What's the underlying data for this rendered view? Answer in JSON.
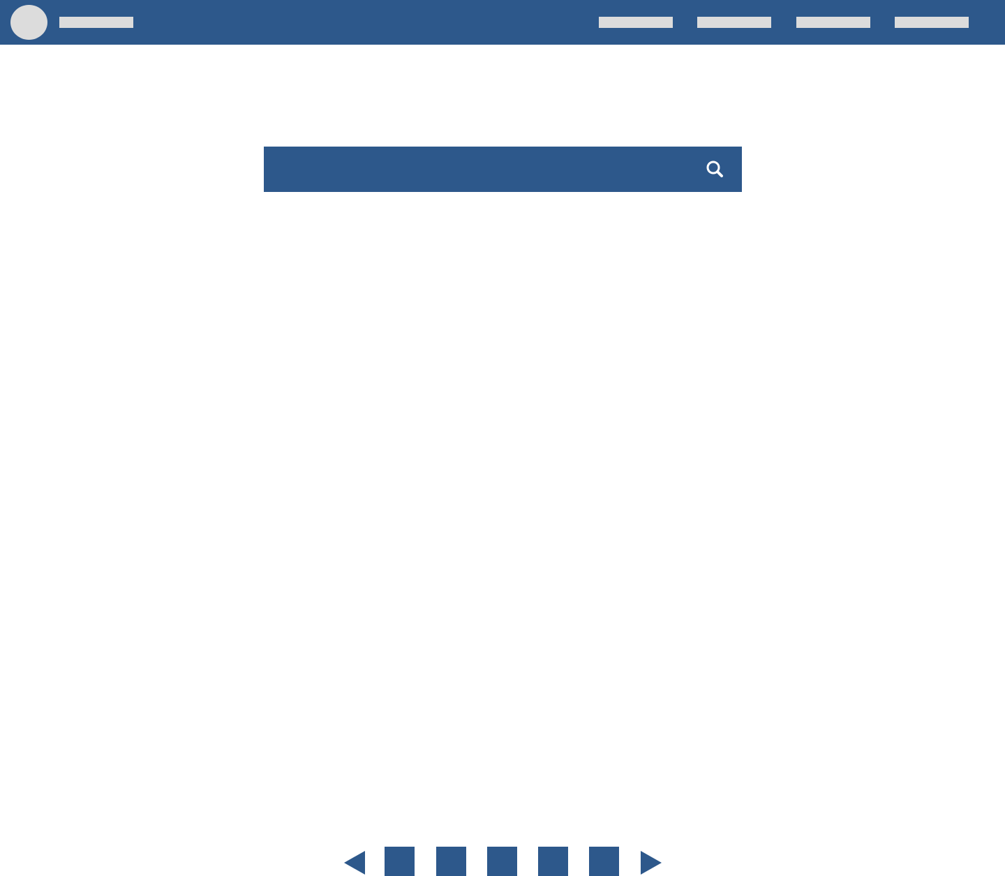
{
  "colors": {
    "primary": "#2d588b",
    "placeholder": "#dcdcdc",
    "background": "#ffffff",
    "icon": "#ffffff"
  },
  "header": {
    "logo_icon": "avatar-placeholder",
    "nav_item_count": 4
  },
  "search": {
    "icon": "search-icon"
  },
  "pagination": {
    "prev_icon": "triangle-left-icon",
    "next_icon": "triangle-right-icon",
    "page_count": 5
  }
}
